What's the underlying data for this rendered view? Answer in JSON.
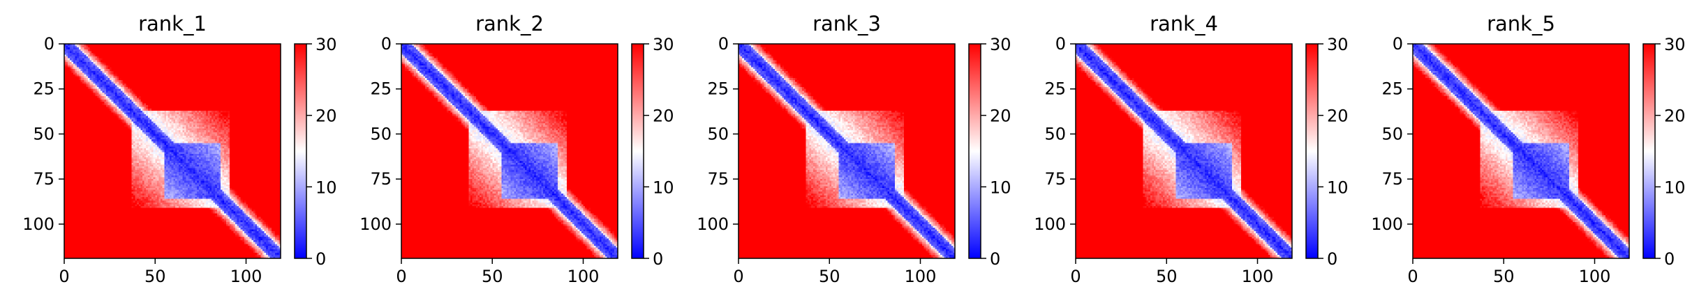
{
  "chart_data": [
    {
      "type": "heatmap",
      "title": "rank_1",
      "xlim": [
        0,
        119
      ],
      "ylim": [
        119,
        0
      ],
      "xticks": [
        0,
        50,
        100
      ],
      "yticks": [
        0,
        25,
        50,
        75,
        100
      ],
      "matrix_size": 119,
      "colorbar": {
        "range": [
          0,
          30
        ],
        "ticks": [
          0,
          10,
          20,
          30
        ],
        "colors": [
          "#0000ff",
          "#ffffff",
          "#ff0000"
        ]
      },
      "domain_block": {
        "from": 55,
        "to": 85,
        "value": 3
      },
      "diagonal_band": {
        "width": 6,
        "value": 2
      }
    },
    {
      "type": "heatmap",
      "title": "rank_2",
      "xlim": [
        0,
        119
      ],
      "ylim": [
        119,
        0
      ],
      "xticks": [
        0,
        50,
        100
      ],
      "yticks": [
        0,
        25,
        50,
        75,
        100
      ],
      "matrix_size": 119,
      "colorbar": {
        "range": [
          0,
          30
        ],
        "ticks": [
          0,
          10,
          20,
          30
        ],
        "colors": [
          "#0000ff",
          "#ffffff",
          "#ff0000"
        ]
      },
      "domain_block": {
        "from": 55,
        "to": 85,
        "value": 3
      },
      "diagonal_band": {
        "width": 6,
        "value": 2
      }
    },
    {
      "type": "heatmap",
      "title": "rank_3",
      "xlim": [
        0,
        119
      ],
      "ylim": [
        119,
        0
      ],
      "xticks": [
        0,
        50,
        100
      ],
      "yticks": [
        0,
        25,
        50,
        75,
        100
      ],
      "matrix_size": 119,
      "colorbar": {
        "range": [
          0,
          30
        ],
        "ticks": [
          0,
          10,
          20,
          30
        ],
        "colors": [
          "#0000ff",
          "#ffffff",
          "#ff0000"
        ]
      },
      "domain_block": {
        "from": 55,
        "to": 85,
        "value": 3
      },
      "diagonal_band": {
        "width": 6,
        "value": 2
      }
    },
    {
      "type": "heatmap",
      "title": "rank_4",
      "xlim": [
        0,
        119
      ],
      "ylim": [
        119,
        0
      ],
      "xticks": [
        0,
        50,
        100
      ],
      "yticks": [
        0,
        25,
        50,
        75,
        100
      ],
      "matrix_size": 119,
      "colorbar": {
        "range": [
          0,
          30
        ],
        "ticks": [
          0,
          10,
          20,
          30
        ],
        "colors": [
          "#0000ff",
          "#ffffff",
          "#ff0000"
        ]
      },
      "domain_block": {
        "from": 55,
        "to": 85,
        "value": 3
      },
      "diagonal_band": {
        "width": 6,
        "value": 2
      }
    },
    {
      "type": "heatmap",
      "title": "rank_5",
      "xlim": [
        0,
        119
      ],
      "ylim": [
        119,
        0
      ],
      "xticks": [
        0,
        50,
        100
      ],
      "yticks": [
        0,
        25,
        50,
        75,
        100
      ],
      "matrix_size": 119,
      "colorbar": {
        "range": [
          0,
          30
        ],
        "ticks": [
          0,
          10,
          20,
          30
        ],
        "colors": [
          "#0000ff",
          "#ffffff",
          "#ff0000"
        ]
      },
      "domain_block": {
        "from": 55,
        "to": 85,
        "value": 3
      },
      "diagonal_band": {
        "width": 6,
        "value": 2
      }
    }
  ]
}
